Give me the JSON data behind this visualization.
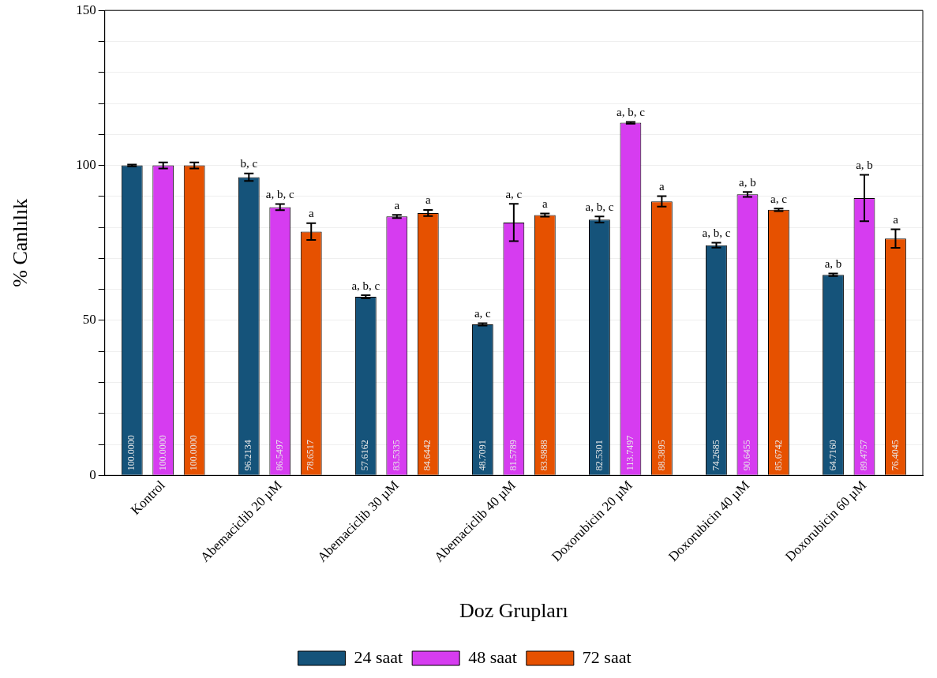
{
  "chart_data": {
    "type": "bar",
    "xlabel": "Doz Grupları",
    "ylabel": "% Canlılık",
    "categories": [
      "Kontrol",
      "Abemaciclib 20 µM",
      "Abemaciclib 30 µM",
      "Abemaciclib 40 µM",
      "Doxorubicin 20 µM",
      "Doxorubicin 40 µM",
      "Doxorubicin 60 µM"
    ],
    "series": [
      {
        "name": "24 saat",
        "color": "#15537a",
        "values": [
          100.0,
          96.2134,
          57.6162,
          48.7091,
          82.5301,
          74.2685,
          64.716
        ],
        "errors": [
          0.3,
          1.2,
          0.5,
          0.4,
          1.0,
          0.8,
          0.4
        ],
        "value_labels": [
          "100.0000",
          "96.2134",
          "57.6162",
          "48.7091",
          "82.5301",
          "74.2685",
          "64.7160"
        ]
      },
      {
        "name": "48 saat",
        "color": "#d63cf0",
        "values": [
          100.0,
          86.5497,
          83.5335,
          81.5789,
          113.7497,
          90.6455,
          89.4757
        ],
        "errors": [
          1.0,
          1.0,
          0.5,
          6.0,
          0.3,
          0.8,
          7.5
        ],
        "value_labels": [
          "100.0000",
          "86.5497",
          "83.5335",
          "81.5789",
          "113.7497",
          "90.6455",
          "89.4757"
        ]
      },
      {
        "name": "72 saat",
        "color": "#e65100",
        "values": [
          100.0,
          78.6517,
          84.6442,
          83.9888,
          88.3895,
          85.6742,
          76.4045
        ],
        "errors": [
          1.0,
          2.7,
          1.0,
          0.5,
          1.7,
          0.4,
          3.0
        ],
        "value_labels": [
          "100.0000",
          "78.6517",
          "84.6442",
          "83.9888",
          "88.3895",
          "85.6742",
          "76.4045"
        ]
      }
    ],
    "ylim": [
      0,
      150
    ],
    "yticks": [
      0,
      {
        "value": 10,
        "label": null
      },
      {
        "value": 20,
        "label": null
      },
      {
        "value": 30,
        "label": null
      },
      {
        "value": 40,
        "label": null
      },
      50,
      {
        "value": 60,
        "label": null
      },
      {
        "value": 70,
        "label": null
      },
      {
        "value": 80,
        "label": null
      },
      {
        "value": 90,
        "label": null
      },
      100,
      {
        "value": 110,
        "label": null
      },
      {
        "value": 120,
        "label": null
      },
      {
        "value": 130,
        "label": null
      },
      {
        "value": 140,
        "label": null
      },
      150
    ],
    "grid": "y",
    "legend": "bottom",
    "annotations": [
      "b, c",
      "a, b, c",
      "a",
      "a, b, c",
      "a",
      "a",
      "a, c",
      "a, c",
      "a",
      "a, b, c",
      "a, b, c",
      "a",
      "a, b, c",
      "a, b",
      "a, c",
      "a, b",
      "a, b",
      "a"
    ]
  }
}
